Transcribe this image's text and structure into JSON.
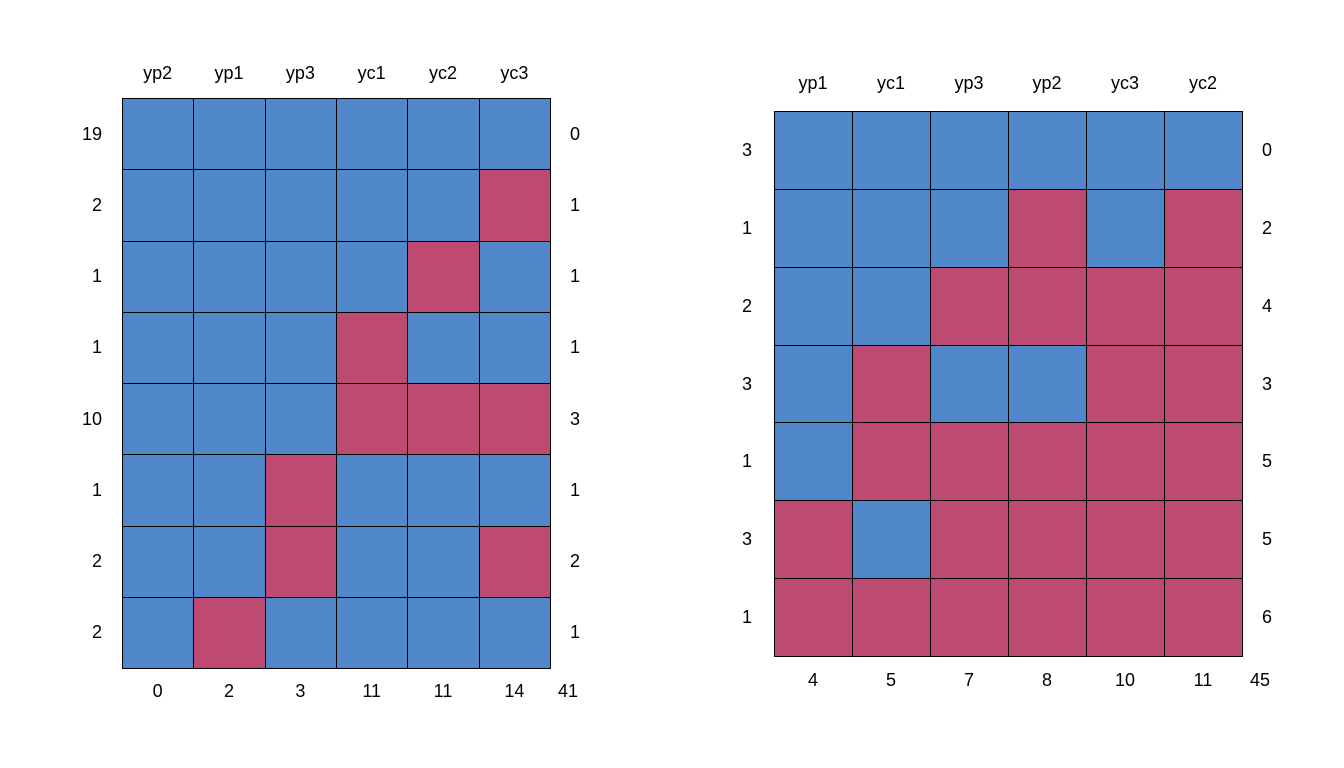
{
  "colors": {
    "observed": "#5087CA",
    "missing": "#BE4A74",
    "border": "#000000"
  },
  "chart_data": [
    {
      "type": "heatmap",
      "columns": [
        "yp2",
        "yp1",
        "yp3",
        "yc1",
        "yc2",
        "yc3"
      ],
      "column_counts": [
        "0",
        "2",
        "3",
        "11",
        "11",
        "14"
      ],
      "total": "41",
      "rows": [
        {
          "count": "19",
          "missing_vars": "0",
          "pattern": [
            1,
            1,
            1,
            1,
            1,
            1
          ]
        },
        {
          "count": "2",
          "missing_vars": "1",
          "pattern": [
            1,
            1,
            1,
            1,
            1,
            0
          ]
        },
        {
          "count": "1",
          "missing_vars": "1",
          "pattern": [
            1,
            1,
            1,
            1,
            0,
            1
          ]
        },
        {
          "count": "1",
          "missing_vars": "1",
          "pattern": [
            1,
            1,
            1,
            0,
            1,
            1
          ]
        },
        {
          "count": "10",
          "missing_vars": "3",
          "pattern": [
            1,
            1,
            1,
            0,
            0,
            0
          ]
        },
        {
          "count": "1",
          "missing_vars": "1",
          "pattern": [
            1,
            1,
            0,
            1,
            1,
            1
          ]
        },
        {
          "count": "2",
          "missing_vars": "2",
          "pattern": [
            1,
            1,
            0,
            1,
            1,
            0
          ]
        },
        {
          "count": "2",
          "missing_vars": "1",
          "pattern": [
            1,
            0,
            1,
            1,
            1,
            1
          ]
        }
      ]
    },
    {
      "type": "heatmap",
      "columns": [
        "yp1",
        "yc1",
        "yp3",
        "yp2",
        "yc3",
        "yc2"
      ],
      "column_counts": [
        "4",
        "5",
        "7",
        "8",
        "10",
        "11"
      ],
      "total": "45",
      "rows": [
        {
          "count": "3",
          "missing_vars": "0",
          "pattern": [
            1,
            1,
            1,
            1,
            1,
            1
          ]
        },
        {
          "count": "1",
          "missing_vars": "2",
          "pattern": [
            1,
            1,
            1,
            0,
            1,
            0
          ]
        },
        {
          "count": "2",
          "missing_vars": "4",
          "pattern": [
            1,
            1,
            0,
            0,
            0,
            0
          ]
        },
        {
          "count": "3",
          "missing_vars": "3",
          "pattern": [
            1,
            0,
            1,
            1,
            0,
            0
          ]
        },
        {
          "count": "1",
          "missing_vars": "5",
          "pattern": [
            1,
            0,
            0,
            0,
            0,
            0
          ]
        },
        {
          "count": "3",
          "missing_vars": "5",
          "pattern": [
            0,
            1,
            0,
            0,
            0,
            0
          ]
        },
        {
          "count": "1",
          "missing_vars": "6",
          "pattern": [
            0,
            0,
            0,
            0,
            0,
            0
          ]
        }
      ]
    }
  ]
}
